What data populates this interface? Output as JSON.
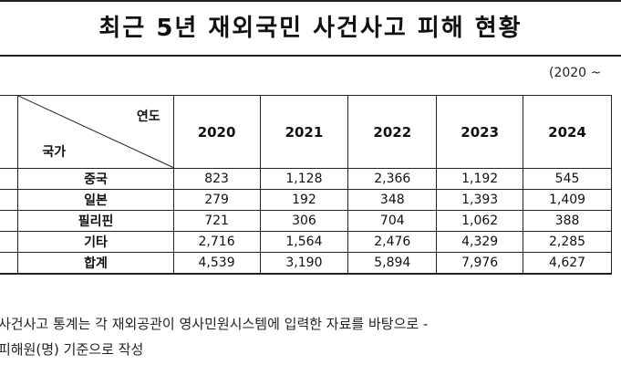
{
  "title": "최근 5년 재외국민 사건사고 피해 현황",
  "period": "(2020 ~",
  "table": {
    "header": {
      "year_label": "연도",
      "country_label": "국가"
    },
    "years": [
      "2020",
      "2021",
      "2022",
      "2023",
      "2024"
    ],
    "rows": [
      {
        "country": "중국",
        "values": [
          "823",
          "1,128",
          "2,366",
          "1,192",
          "545"
        ]
      },
      {
        "country": "일본",
        "values": [
          "279",
          "192",
          "348",
          "1,393",
          "1,409"
        ]
      },
      {
        "country": "필리핀",
        "values": [
          "721",
          "306",
          "704",
          "1,062",
          "388"
        ]
      },
      {
        "country": "기타",
        "values": [
          "2,716",
          "1,564",
          "2,476",
          "4,329",
          "2,285"
        ]
      },
      {
        "country": "합계",
        "values": [
          "4,539",
          "3,190",
          "5,894",
          "7,976",
          "4,627"
        ]
      }
    ]
  },
  "notes": [
    "사건사고 통계는 각 재외공관이 영사민원시스템에 입력한 자료를 바탕으로 -",
    "피해원(명) 기준으로 작성"
  ]
}
